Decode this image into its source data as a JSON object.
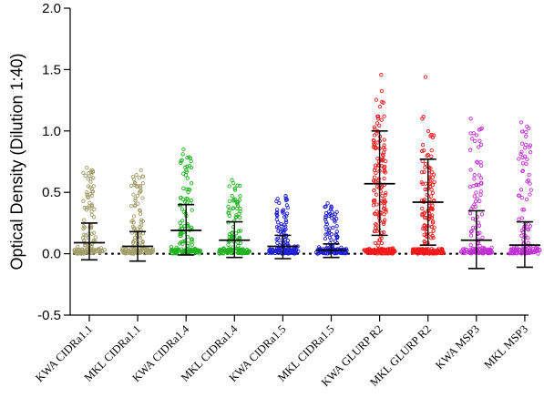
{
  "chart_data": {
    "type": "scatter",
    "ylabel": "Optical Density (Dilution 1:40)",
    "xlabel": "",
    "title": "",
    "ylim": [
      -0.5,
      2.0
    ],
    "yticks": [
      "-0.5",
      "0.0",
      "0.5",
      "1.0",
      "1.5",
      "2.0"
    ],
    "reference_line": 0.0,
    "grid": false,
    "marker": "open circle",
    "groups": [
      {
        "label": "KWA CIDRa1.1",
        "color": "#a39e6b",
        "mean": 0.09,
        "upper": 0.25,
        "lower": -0.05,
        "max": 0.7,
        "n": 140
      },
      {
        "label": "MKL CIDRa1.1",
        "color": "#a39e6b",
        "mean": 0.06,
        "upper": 0.18,
        "lower": -0.06,
        "max": 0.68,
        "n": 140
      },
      {
        "label": "KWA CIDRa1.4",
        "color": "#22b322",
        "mean": 0.19,
        "upper": 0.4,
        "lower": -0.01,
        "max": 0.85,
        "n": 150
      },
      {
        "label": "MKL CIDRa1.4",
        "color": "#22b322",
        "mean": 0.11,
        "upper": 0.26,
        "lower": -0.03,
        "max": 0.6,
        "n": 140
      },
      {
        "label": "KWA CIDRa1.5",
        "color": "#1f1fd6",
        "mean": 0.06,
        "upper": 0.15,
        "lower": -0.04,
        "max": 0.47,
        "n": 140
      },
      {
        "label": "MKL CIDRa1.5",
        "color": "#1f1fd6",
        "mean": 0.03,
        "upper": 0.08,
        "lower": -0.03,
        "max": 0.41,
        "n": 130
      },
      {
        "label": "KWA GLURP R2",
        "color": "#f01a1a",
        "mean": 0.57,
        "upper": 1.0,
        "lower": 0.15,
        "max": 1.57,
        "n": 230
      },
      {
        "label": "MKL GLURP R2",
        "color": "#f01a1a",
        "mean": 0.42,
        "upper": 0.77,
        "lower": 0.07,
        "max": 1.44,
        "n": 220
      },
      {
        "label": "KWA MSP3",
        "color": "#c22fd6",
        "mean": 0.11,
        "upper": 0.35,
        "lower": -0.12,
        "max": 1.1,
        "n": 150
      },
      {
        "label": "MKL MSP3",
        "color": "#c22fd6",
        "mean": 0.07,
        "upper": 0.26,
        "lower": -0.11,
        "max": 1.07,
        "n": 140
      }
    ]
  }
}
